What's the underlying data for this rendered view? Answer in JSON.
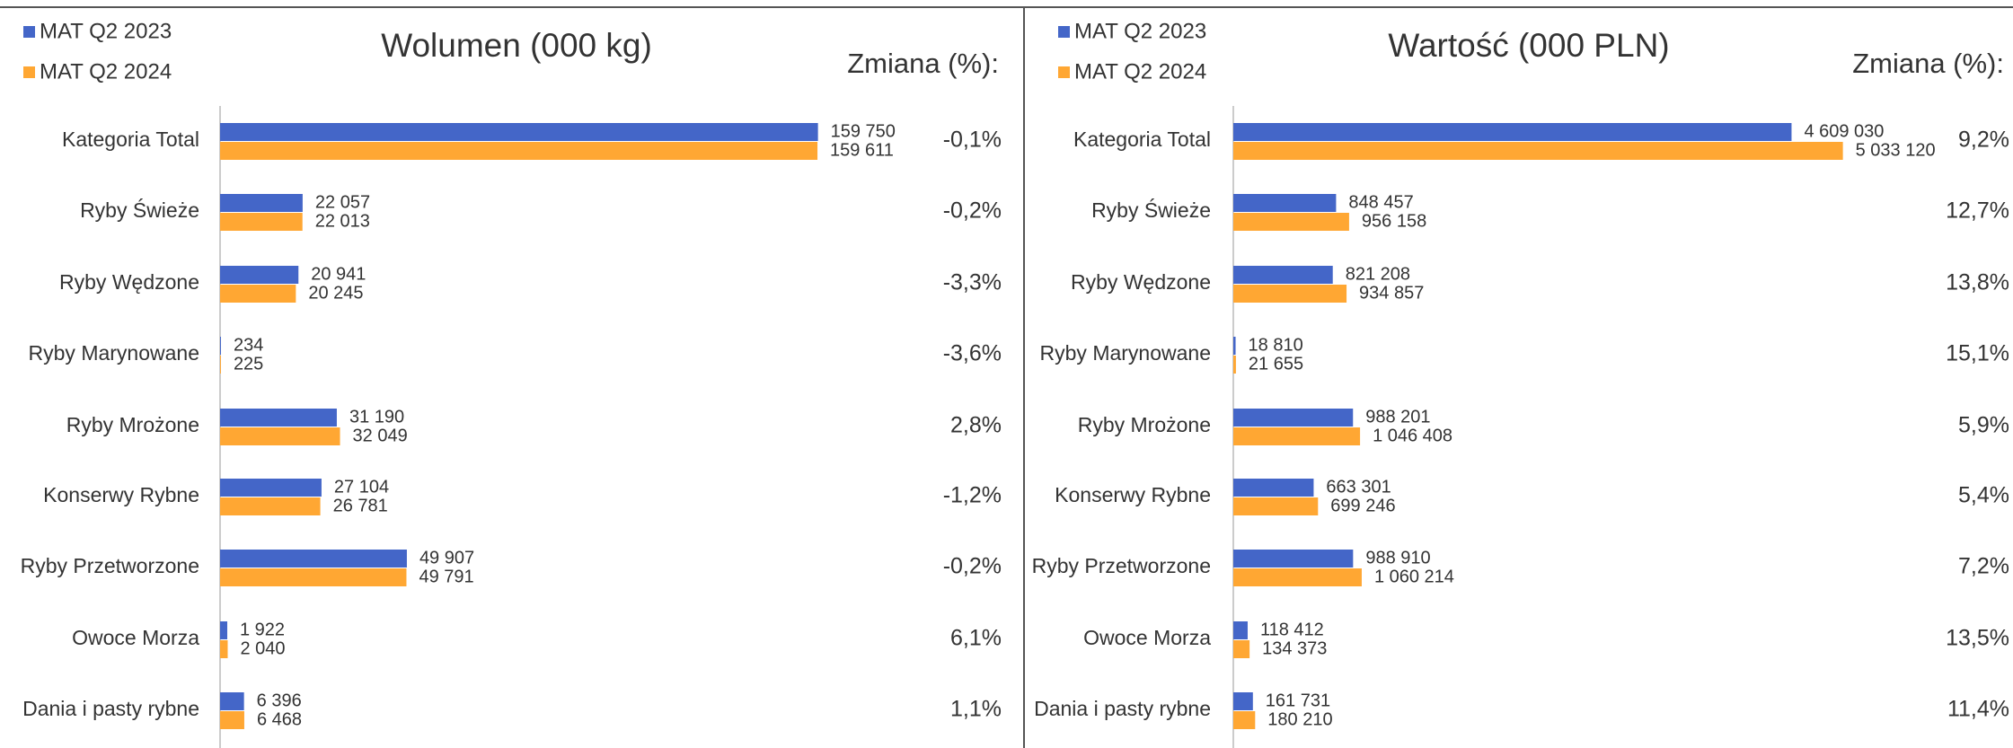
{
  "chart_data": [
    {
      "type": "bar",
      "orientation": "horizontal",
      "title": "Wolumen (000 kg)",
      "change_label": "Zmiana (%):",
      "categories": [
        "Kategoria Total",
        "Ryby Świeże",
        "Ryby Wędzone",
        "Ryby Marynowane",
        "Ryby Mrożone",
        "Konserwy Rybne",
        "Ryby Przetworzone",
        "Owoce Morza",
        "Dania i pasty rybne"
      ],
      "series": [
        {
          "name": "MAT Q2 2023",
          "color": "#4466c8",
          "values": [
            159750,
            22057,
            20941,
            234,
            31190,
            27104,
            49907,
            1922,
            6396
          ],
          "value_labels": [
            "159 750",
            "22 057",
            "20 941",
            "234",
            "31 190",
            "27 104",
            "49 907",
            "1 922",
            "6 396"
          ]
        },
        {
          "name": "MAT Q2 2024",
          "color": "#ffa733",
          "values": [
            159611,
            22013,
            20245,
            225,
            32049,
            26781,
            49791,
            2040,
            6468
          ],
          "value_labels": [
            "159 611",
            "22 013",
            "20 245",
            "225",
            "32 049",
            "26 781",
            "49 791",
            "2 040",
            "6 468"
          ]
        }
      ],
      "changes": [
        "-0,1%",
        "-0,2%",
        "-3,3%",
        "-3,6%",
        "2,8%",
        "-1,2%",
        "-0,2%",
        "6,1%",
        "1,1%"
      ],
      "xlim": [
        0,
        180000
      ]
    },
    {
      "type": "bar",
      "orientation": "horizontal",
      "title": "Wartość (000 PLN)",
      "change_label": "Zmiana (%):",
      "categories": [
        "Kategoria Total",
        "Ryby Świeże",
        "Ryby Wędzone",
        "Ryby Marynowane",
        "Ryby Mrożone",
        "Konserwy Rybne",
        "Ryby Przetworzone",
        "Owoce Morza",
        "Dania i pasty rybne"
      ],
      "series": [
        {
          "name": "MAT Q2 2023",
          "color": "#4466c8",
          "values": [
            4609030,
            848457,
            821208,
            18810,
            988201,
            663301,
            988910,
            118412,
            161731
          ],
          "value_labels": [
            "4 609 030",
            "848 457",
            "821 208",
            "18 810",
            "988 201",
            "663 301",
            "988 910",
            "118 412",
            "161 731"
          ]
        },
        {
          "name": "MAT Q2 2024",
          "color": "#ffa733",
          "values": [
            5033120,
            956158,
            934857,
            21655,
            1046408,
            699246,
            1060214,
            134373,
            180210
          ],
          "value_labels": [
            "5 033 120",
            "956 158",
            "934 857",
            "21 655",
            "1 046 408",
            "699 246",
            "1 060 214",
            "134 373",
            "180 210"
          ]
        }
      ],
      "changes": [
        "9,2%",
        "12,7%",
        "13,8%",
        "15,1%",
        "5,9%",
        "5,4%",
        "7,2%",
        "13,5%",
        "11,4%"
      ],
      "xlim": [
        0,
        6000000
      ]
    }
  ]
}
